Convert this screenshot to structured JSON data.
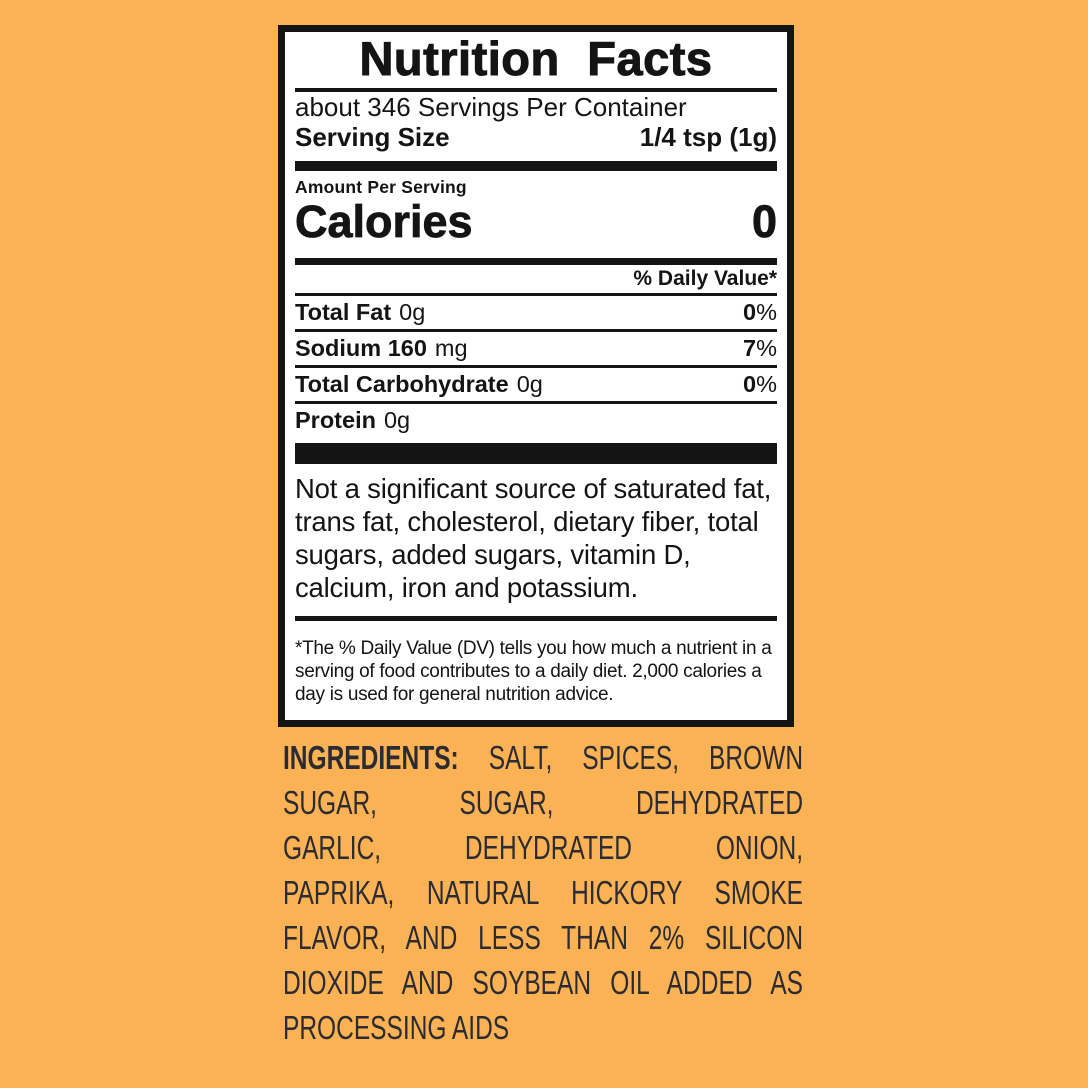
{
  "colors": {
    "background": "#fbb254",
    "panel_background": "#ffffff",
    "panel_text": "#141414",
    "ingredients_text": "#2c2b32"
  },
  "panel": {
    "title": "Nutrition Facts",
    "servings_per_container": "about 346 Servings Per Container",
    "serving_size_label": "Serving Size",
    "serving_size_value": "1/4 tsp (1g)",
    "amount_per_serving": "Amount Per Serving",
    "calories_label": "Calories",
    "calories_value": "0",
    "daily_value_header": "% Daily Value*",
    "nutrients": [
      {
        "bold": "Total Fat",
        "rest": "0g",
        "dv": "0",
        "pct": "%"
      },
      {
        "bold": "Sodium 160",
        "rest": "mg",
        "dv": "7",
        "pct": "%"
      },
      {
        "bold": "Total Carbohydrate",
        "rest": "0g",
        "dv": "0",
        "pct": "%"
      },
      {
        "bold": "Protein",
        "rest": "0g",
        "dv": "",
        "pct": ""
      }
    ],
    "not_significant": "Not a significant source of saturated fat, trans fat, cholesterol, dietary fiber, total sugars, added sugars, vitamin D, calcium, iron and potassium.",
    "footnote": "*The % Daily Value (DV) tells you how much a nutrient in a serving of food contributes to a daily diet. 2,000 calories a day is used for general nutrition advice."
  },
  "ingredients": {
    "label": "INGREDIENTS:",
    "lines": [
      " SALT, SPICES, BROWN",
      "SUGAR, SUGAR, DEHYDRATED",
      "GARLIC, DEHYDRATED ONION,",
      "PAPRIKA, NATURAL HICKORY SMOKE",
      "FLAVOR, AND LESS THAN 2% SILICON",
      "DIOXIDE AND SOYBEAN OIL ADDED AS",
      "PROCESSING AIDS"
    ]
  }
}
